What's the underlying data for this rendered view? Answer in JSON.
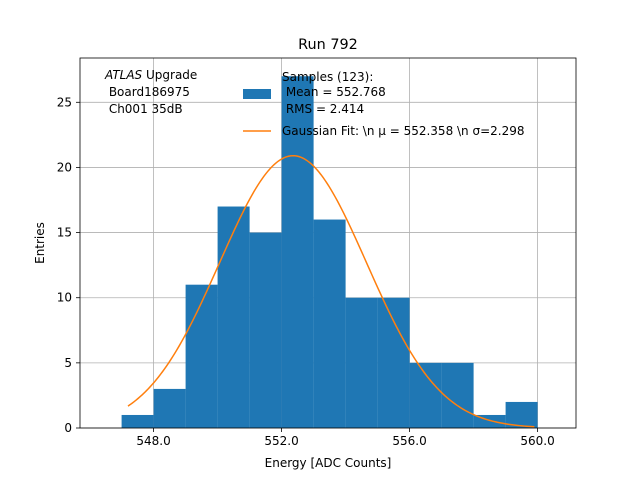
{
  "chart_data": {
    "type": "bar",
    "title": "Run 792",
    "xlabel": "Energy [ADC Counts]",
    "ylabel": "Entries",
    "xlim": [
      545.7,
      561.2
    ],
    "ylim": [
      0,
      28.4
    ],
    "grid": true,
    "x_ticks": [
      548.0,
      552.0,
      556.0,
      560.0
    ],
    "x_tick_labels": [
      "548.0",
      "552.0",
      "556.0",
      "560.0"
    ],
    "y_ticks": [
      0,
      5,
      10,
      15,
      20,
      25
    ],
    "y_tick_labels": [
      "0",
      "5",
      "10",
      "15",
      "20",
      "25"
    ],
    "bins": [
      {
        "lo": 547.0,
        "hi": 548.0,
        "count": 1
      },
      {
        "lo": 548.0,
        "hi": 549.0,
        "count": 3
      },
      {
        "lo": 549.0,
        "hi": 550.0,
        "count": 11
      },
      {
        "lo": 550.0,
        "hi": 551.0,
        "count": 17
      },
      {
        "lo": 551.0,
        "hi": 552.0,
        "count": 15
      },
      {
        "lo": 552.0,
        "hi": 553.0,
        "count": 27
      },
      {
        "lo": 553.0,
        "hi": 554.0,
        "count": 16
      },
      {
        "lo": 554.0,
        "hi": 555.0,
        "count": 10
      },
      {
        "lo": 555.0,
        "hi": 556.0,
        "count": 10
      },
      {
        "lo": 556.0,
        "hi": 557.0,
        "count": 5
      },
      {
        "lo": 557.0,
        "hi": 558.0,
        "count": 5
      },
      {
        "lo": 558.0,
        "hi": 559.0,
        "count": 1
      },
      {
        "lo": 559.0,
        "hi": 560.0,
        "count": 2
      }
    ],
    "fit": {
      "x_range": [
        547.2,
        559.9
      ],
      "amplitude": 20.9,
      "mu": 552.358,
      "sigma": 2.298
    },
    "colors": {
      "bars": "#1f77b4",
      "fit": "#ff7f0e",
      "grid": "#b0b0b0"
    },
    "legend": {
      "placement": "top-right",
      "entries": [
        {
          "kind": "bar",
          "lines": [
            "Samples (123):",
            " Mean = 552.768",
            " RMS = 2.414"
          ]
        },
        {
          "kind": "line",
          "text": "Gaussian Fit: \\n μ = 552.358 \\n σ=2.298"
        }
      ]
    },
    "annotation": {
      "italic": "ATLAS",
      "rest": " Upgrade",
      "lines": [
        " Board186975",
        " Ch001 35dB"
      ]
    }
  }
}
